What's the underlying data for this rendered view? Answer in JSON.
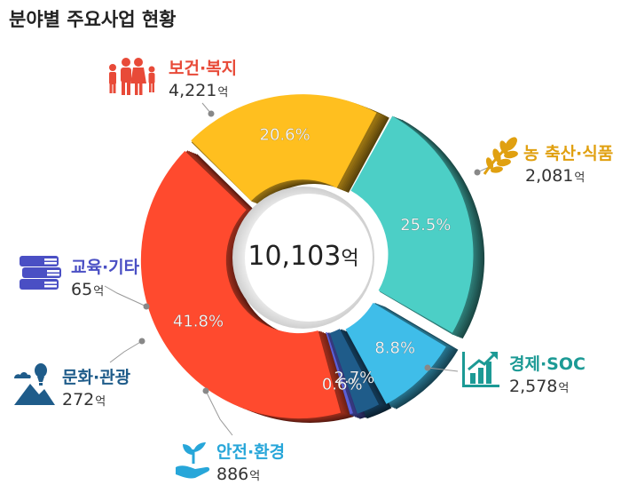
{
  "chart_data": {
    "type": "pie",
    "title": "분야별 주요사업 현황",
    "center_total": "10,103",
    "unit": "억",
    "categories": [
      "보건·복지",
      "농 축산·식품",
      "경제·SOC",
      "안전·환경",
      "문화·관광",
      "교육·기타"
    ],
    "values": [
      4221,
      2081,
      2578,
      886,
      272,
      65
    ],
    "value_labels": [
      "4,221",
      "2,081",
      "2,578",
      "886",
      "272",
      "65"
    ],
    "percent_labels": [
      "41.8%",
      "20.6%",
      "25.5%",
      "8.8%",
      "2.7%",
      "0.6%"
    ],
    "colors": [
      "#ff4a2e",
      "#ffbf1f",
      "#4ccfc6",
      "#3fbde9",
      "#1f5c8a",
      "#5b5fd6"
    ],
    "label_colors": [
      "#e84a38",
      "#e0a010",
      "#1c9a95",
      "#27a6d9",
      "#1f5c8a",
      "#4a4fc4"
    ],
    "icons": [
      "family-icon",
      "wheat-icon",
      "growth-chart-icon",
      "plant-in-hand-icon",
      "mountain-balloon-icon",
      "books-icon"
    ],
    "grid": false,
    "legend": "none"
  }
}
